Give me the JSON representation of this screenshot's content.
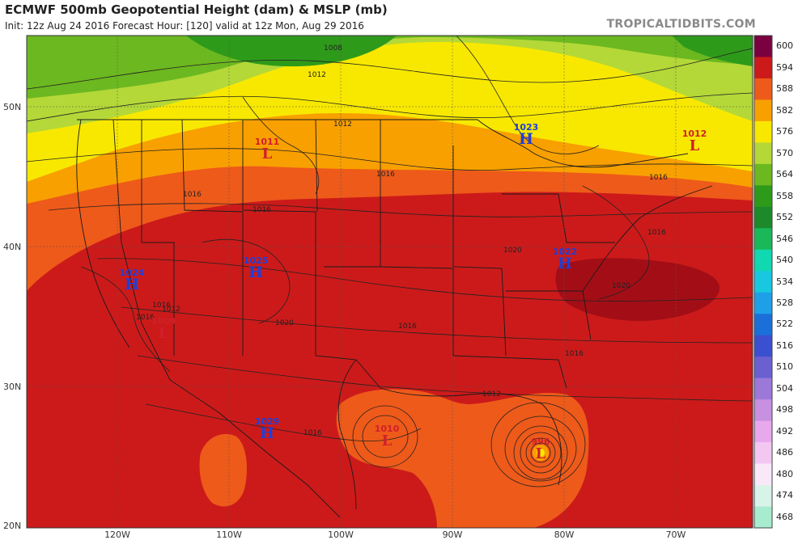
{
  "header": {
    "title": "ECMWF 500mb Geopotential Height (dam) & MSLP (mb)",
    "subtitle": "Init: 12z Aug 24 2016   Forecast Hour: [120]   valid at 12z Mon, Aug 29 2016",
    "credit": "TROPICALTIDBITS.COM"
  },
  "axes": {
    "lat_labels": [
      "50N",
      "40N",
      "30N",
      "20N"
    ],
    "lon_labels": [
      "120W",
      "110W",
      "100W",
      "90W",
      "80W",
      "70W"
    ]
  },
  "colorbar": {
    "levels": [
      "600",
      "594",
      "588",
      "582",
      "576",
      "570",
      "564",
      "558",
      "552",
      "546",
      "540",
      "534",
      "528",
      "522",
      "516",
      "510",
      "504",
      "498",
      "492",
      "486",
      "480",
      "474",
      "468"
    ],
    "colors": [
      "#7a0040",
      "#cc1a1a",
      "#ee5a1a",
      "#f8a000",
      "#f8e800",
      "#b4d838",
      "#6cb820",
      "#2e9a1a",
      "#1c8a2a",
      "#1ab858",
      "#10d8b0",
      "#18c8e0",
      "#1ea0e8",
      "#1a70d8",
      "#3a50d0",
      "#6a60d0",
      "#9c78d8",
      "#c890e0",
      "#e8a8ee",
      "#f2c8f2",
      "#f8e8f8",
      "#d8f4e8",
      "#a8ecd0"
    ]
  },
  "pressure_systems": [
    {
      "type": "H",
      "value": "1023"
    },
    {
      "type": "L",
      "value": "1012"
    },
    {
      "type": "L",
      "value": "1011"
    },
    {
      "type": "H",
      "value": "1024"
    },
    {
      "type": "H",
      "value": "1025"
    },
    {
      "type": "H",
      "value": "1022"
    },
    {
      "type": "L",
      "value": "1009"
    },
    {
      "type": "H",
      "value": "1029"
    },
    {
      "type": "L",
      "value": "1010"
    },
    {
      "type": "L",
      "value": "996"
    }
  ],
  "isobar_labels": [
    "1008",
    "1012",
    "1012",
    "1016",
    "1016",
    "1016",
    "1020",
    "1020",
    "1016",
    "1016",
    "1012",
    "1016",
    "1016",
    "1016",
    "1020",
    "1016",
    "1012",
    "1016"
  ]
}
